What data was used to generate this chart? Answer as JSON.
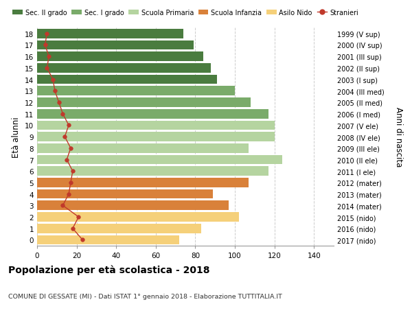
{
  "ages": [
    18,
    17,
    16,
    15,
    14,
    13,
    12,
    11,
    10,
    9,
    8,
    7,
    6,
    5,
    4,
    3,
    2,
    1,
    0
  ],
  "bar_values": [
    74,
    79,
    84,
    88,
    91,
    100,
    108,
    117,
    120,
    120,
    107,
    124,
    117,
    107,
    89,
    97,
    102,
    83,
    72
  ],
  "bar_colors": [
    "#4a7c3f",
    "#4a7c3f",
    "#4a7c3f",
    "#4a7c3f",
    "#4a7c3f",
    "#7aab6a",
    "#7aab6a",
    "#7aab6a",
    "#b5d4a0",
    "#b5d4a0",
    "#b5d4a0",
    "#b5d4a0",
    "#b5d4a0",
    "#d9813a",
    "#d9813a",
    "#d9813a",
    "#f5d07a",
    "#f5d07a",
    "#f5d07a"
  ],
  "stranieri_values": [
    5,
    4,
    6,
    5,
    8,
    9,
    11,
    13,
    16,
    14,
    17,
    15,
    18,
    17,
    16,
    13,
    21,
    18,
    23
  ],
  "right_labels": [
    "1999 (V sup)",
    "2000 (IV sup)",
    "2001 (III sup)",
    "2002 (II sup)",
    "2003 (I sup)",
    "2004 (III med)",
    "2005 (II med)",
    "2006 (I med)",
    "2007 (V ele)",
    "2008 (IV ele)",
    "2009 (III ele)",
    "2010 (II ele)",
    "2011 (I ele)",
    "2012 (mater)",
    "2013 (mater)",
    "2014 (mater)",
    "2015 (nido)",
    "2016 (nido)",
    "2017 (nido)"
  ],
  "legend_labels": [
    "Sec. II grado",
    "Sec. I grado",
    "Scuola Primaria",
    "Scuola Infanzia",
    "Asilo Nido",
    "Stranieri"
  ],
  "legend_colors": [
    "#4a7c3f",
    "#7aab6a",
    "#b5d4a0",
    "#d9813a",
    "#f5d07a",
    "#c0392b"
  ],
  "ylabel": "Età alunni",
  "ylabel_right": "Anni di nascita",
  "title": "Popolazione per età scolastica - 2018",
  "subtitle": "COMUNE DI GESSATE (MI) - Dati ISTAT 1° gennaio 2018 - Elaborazione TUTTITALIA.IT",
  "xlim": [
    0,
    150
  ],
  "xticks": [
    0,
    20,
    40,
    60,
    80,
    100,
    120,
    140
  ],
  "background_color": "#ffffff",
  "grid_color": "#cccccc",
  "stranieri_line_color": "#c0392b",
  "stranieri_marker_color": "#c0392b"
}
